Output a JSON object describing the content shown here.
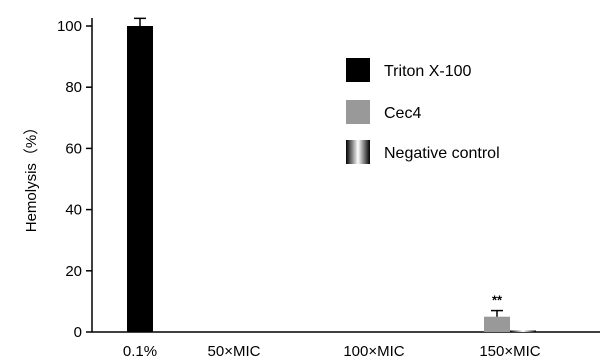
{
  "chart_data": {
    "type": "bar",
    "ylabel": "Hemolysis（%）",
    "xlabel": "",
    "ylim": [
      0,
      105
    ],
    "yticks": [
      0,
      20,
      40,
      60,
      80,
      100
    ],
    "grid": false,
    "legend_position": "top-right",
    "categories": [
      "0.1%",
      "50×MIC",
      "100×MIC",
      "150×MIC"
    ],
    "series": [
      {
        "name": "Triton X-100",
        "color": "#000000",
        "values": [
          100,
          null,
          null,
          null
        ],
        "errors": [
          2.5,
          null,
          null,
          null
        ]
      },
      {
        "name": "Cec4",
        "color": "#999999",
        "values": [
          null,
          0,
          0,
          5
        ],
        "errors": [
          null,
          0,
          0,
          2
        ]
      },
      {
        "name": "Negative control",
        "color": "#bbbbbb",
        "values": [
          null,
          0,
          0,
          0.5
        ],
        "errors": [
          null,
          0,
          0,
          0
        ]
      }
    ],
    "annotations": [
      {
        "text": "**",
        "category": "150×MIC",
        "series": "Cec4"
      }
    ]
  }
}
